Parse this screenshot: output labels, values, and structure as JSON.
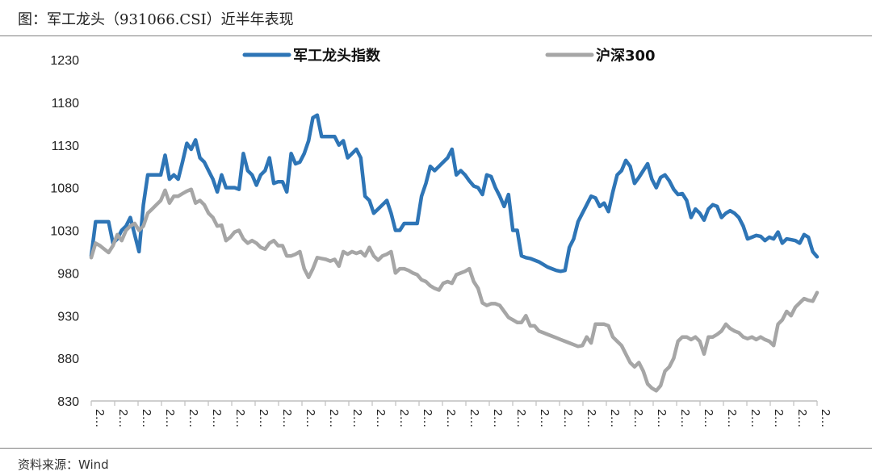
{
  "header": {
    "title": "图：军工龙头（931066.CSI）近半年表现"
  },
  "footer": {
    "source": "资料来源：Wind"
  },
  "colors": {
    "series1": "#2e75b6",
    "series2": "#a6a6a6",
    "axis": "#bfbfbf"
  },
  "chart_data": {
    "type": "line",
    "title": "",
    "xlabel": "",
    "ylabel": "",
    "ylim": [
      830,
      1230
    ],
    "yticks": [
      1230,
      1180,
      1130,
      1080,
      1030,
      980,
      930,
      880,
      830
    ],
    "xtick_labels": [
      "2…",
      "2…",
      "2…",
      "2…",
      "2…",
      "2…",
      "2…",
      "2…",
      "2…",
      "2…",
      "2…",
      "2…",
      "2…",
      "2…",
      "2…",
      "2…",
      "2…",
      "2…",
      "2…",
      "2…",
      "2…",
      "2…",
      "2…",
      "2…",
      "2…",
      "2…",
      "2…",
      "2…",
      "2…",
      "2…",
      "2…",
      "2…"
    ],
    "legend": "top",
    "series": [
      {
        "name": "军工龙头指数",
        "values": [
          1000,
          1040,
          1040,
          1040,
          1040,
          1015,
          1020,
          1030,
          1035,
          1045,
          1025,
          1005,
          1060,
          1095,
          1095,
          1095,
          1095,
          1118,
          1090,
          1095,
          1090,
          1110,
          1132,
          1125,
          1136,
          1115,
          1110,
          1100,
          1090,
          1075,
          1095,
          1080,
          1080,
          1080,
          1078,
          1120,
          1100,
          1095,
          1083,
          1095,
          1100,
          1115,
          1085,
          1087,
          1087,
          1075,
          1120,
          1108,
          1110,
          1120,
          1135,
          1162,
          1165,
          1140,
          1140,
          1140,
          1140,
          1130,
          1135,
          1115,
          1120,
          1125,
          1115,
          1070,
          1065,
          1050,
          1055,
          1060,
          1065,
          1050,
          1030,
          1030,
          1038,
          1038,
          1038,
          1038,
          1070,
          1085,
          1105,
          1100,
          1105,
          1110,
          1115,
          1125,
          1095,
          1100,
          1095,
          1088,
          1082,
          1080,
          1072,
          1095,
          1093,
          1080,
          1070,
          1058,
          1072,
          1030,
          1030,
          1000,
          998,
          997,
          995,
          993,
          990,
          987,
          985,
          983,
          982,
          983,
          1010,
          1020,
          1040,
          1050,
          1060,
          1070,
          1068,
          1058,
          1062,
          1052,
          1075,
          1095,
          1100,
          1112,
          1105,
          1085,
          1092,
          1100,
          1108,
          1090,
          1080,
          1092,
          1095,
          1088,
          1078,
          1072,
          1073,
          1065,
          1045,
          1055,
          1050,
          1042,
          1055,
          1060,
          1058,
          1045,
          1050,
          1053,
          1050,
          1045,
          1035,
          1020,
          1022,
          1024,
          1023,
          1018,
          1022,
          1020,
          1028,
          1015,
          1020,
          1019,
          1018,
          1015,
          1025,
          1022,
          1005,
          999
        ]
      },
      {
        "name": "沪深300",
        "values": [
          998,
          1015,
          1012,
          1008,
          1004,
          1012,
          1025,
          1018,
          1030,
          1035,
          1038,
          1030,
          1035,
          1050,
          1055,
          1060,
          1065,
          1077,
          1062,
          1070,
          1070,
          1073,
          1076,
          1078,
          1062,
          1065,
          1060,
          1050,
          1045,
          1035,
          1036,
          1018,
          1022,
          1028,
          1030,
          1020,
          1015,
          1018,
          1015,
          1010,
          1008,
          1015,
          1018,
          1012,
          1012,
          1000,
          1000,
          1002,
          1005,
          985,
          975,
          985,
          998,
          997,
          996,
          994,
          996,
          988,
          1005,
          1002,
          1005,
          1003,
          1005,
          1000,
          1010,
          1000,
          995,
          1000,
          1002,
          1005,
          980,
          985,
          985,
          983,
          980,
          978,
          972,
          970,
          965,
          962,
          960,
          968,
          970,
          968,
          978,
          980,
          982,
          985,
          970,
          962,
          945,
          942,
          944,
          944,
          942,
          935,
          928,
          925,
          922,
          922,
          930,
          918,
          918,
          912,
          910,
          908,
          906,
          904,
          902,
          900,
          898,
          896,
          894,
          895,
          905,
          898,
          920,
          920,
          920,
          918,
          905,
          900,
          895,
          885,
          875,
          870,
          875,
          865,
          850,
          845,
          842,
          848,
          865,
          870,
          880,
          900,
          905,
          905,
          902,
          905,
          900,
          885,
          905,
          905,
          908,
          912,
          920,
          915,
          912,
          910,
          905,
          903,
          905,
          902,
          905,
          902,
          900,
          895,
          920,
          925,
          935,
          930,
          940,
          945,
          950,
          948,
          947,
          957
        ]
      }
    ]
  }
}
